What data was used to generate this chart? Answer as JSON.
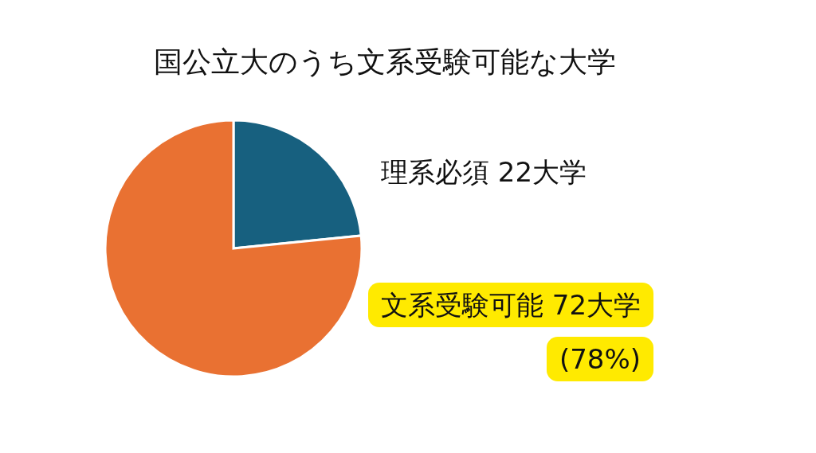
{
  "chart_data": {
    "type": "pie",
    "title": "国公立大のうち文系受験可能な大学",
    "categories": [
      "理系必須",
      "文系受験可能"
    ],
    "values": [
      22,
      72
    ],
    "colors": [
      "#17607f",
      "#e97132"
    ],
    "value_labels": [
      "22大学",
      "72大学"
    ],
    "annotations": [
      "(78%)"
    ]
  }
}
